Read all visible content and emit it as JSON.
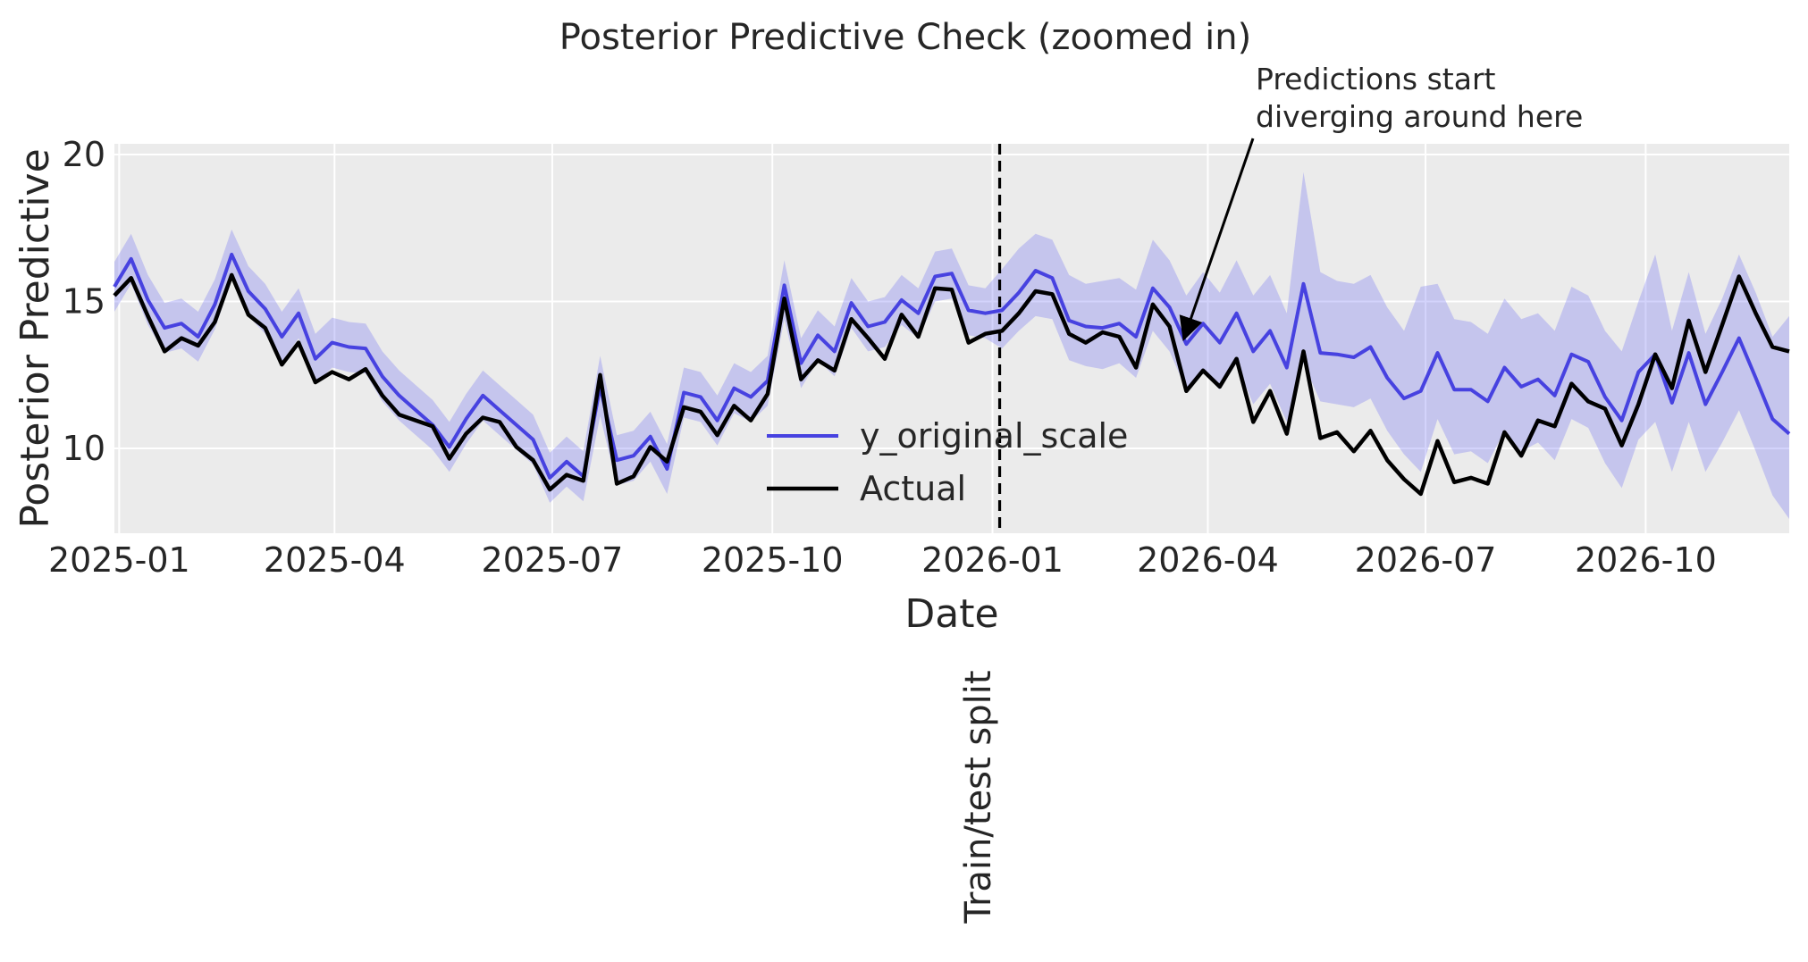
{
  "title": "Posterior Predictive Check (zoomed in)",
  "chart_data": {
    "type": "line",
    "title": "Posterior Predictive Check (zoomed in)",
    "xlabel": "Date",
    "ylabel": "Posterior Predictive",
    "background": "#ebebeb",
    "grid": "on",
    "grid_color": "#ffffff",
    "ylim": [
      7.2,
      20.4
    ],
    "xlim": [
      "2024-12-30",
      "2026-12-01"
    ],
    "y_ticks": [
      20,
      15,
      10
    ],
    "x_ticks": [
      {
        "date": "2025-01-01",
        "label": "2025-01"
      },
      {
        "date": "2025-04-01",
        "label": "2025-04"
      },
      {
        "date": "2025-07-01",
        "label": "2025-07"
      },
      {
        "date": "2025-10-01",
        "label": "2025-10"
      },
      {
        "date": "2026-01-01",
        "label": "2026-01"
      },
      {
        "date": "2026-04-01",
        "label": "2026-04"
      },
      {
        "date": "2026-07-01",
        "label": "2026-07"
      },
      {
        "date": "2026-10-01",
        "label": "2026-10"
      }
    ],
    "x_start": "2024-12-30",
    "x_step_days": 7,
    "split": {
      "date": "2026-01-04",
      "label": "Train/test split",
      "line_style": "dashed",
      "color": "#000000"
    },
    "legend": [
      {
        "label": "y_original_scale",
        "color": "#4742e0"
      },
      {
        "label": "Actual",
        "color": "#000000"
      }
    ],
    "band": {
      "color": "#6c6ef2",
      "opacity": 0.3,
      "high": [
        16.35,
        17.3,
        15.9,
        14.95,
        15.1,
        14.65,
        15.75,
        17.45,
        16.2,
        15.6,
        14.65,
        15.45,
        13.9,
        14.45,
        14.3,
        14.25,
        13.3,
        12.65,
        12.15,
        11.65,
        10.9,
        11.85,
        12.65,
        12.15,
        11.65,
        11.15,
        9.85,
        10.4,
        9.9,
        13.15,
        10.45,
        10.6,
        11.25,
        10.15,
        12.75,
        12.6,
        11.8,
        12.9,
        12.6,
        13.15,
        16.4,
        13.75,
        14.7,
        14.15,
        15.8,
        15.0,
        15.15,
        15.9,
        15.45,
        16.7,
        16.8,
        15.55,
        15.45,
        16.1,
        16.8,
        17.3,
        17.1,
        15.9,
        15.6,
        15.7,
        15.8,
        15.4,
        17.1,
        16.4,
        15.2,
        16.0,
        15.3,
        16.4,
        15.2,
        15.9,
        14.6,
        19.4,
        16.0,
        15.7,
        15.6,
        15.9,
        14.8,
        14.0,
        15.5,
        15.6,
        14.4,
        14.3,
        13.9,
        15.1,
        14.4,
        14.6,
        14.0,
        15.5,
        15.2,
        14.0,
        13.3,
        15.0,
        16.6,
        14.0,
        16.0,
        13.9,
        15.1,
        16.6,
        15.3,
        13.8,
        14.5
      ],
      "low": [
        14.65,
        15.6,
        14.2,
        13.25,
        13.4,
        12.95,
        14.05,
        15.75,
        14.5,
        13.9,
        12.95,
        13.75,
        12.2,
        12.75,
        12.6,
        12.55,
        11.6,
        10.95,
        10.45,
        9.95,
        9.2,
        10.15,
        10.95,
        10.45,
        9.95,
        9.45,
        8.15,
        8.7,
        8.2,
        11.1,
        8.75,
        8.9,
        9.55,
        8.45,
        11.05,
        10.9,
        10.1,
        11.2,
        10.9,
        11.45,
        14.4,
        12.05,
        13.0,
        12.45,
        14.1,
        13.3,
        13.45,
        14.2,
        13.75,
        15.0,
        15.1,
        13.85,
        13.75,
        13.4,
        14.0,
        14.5,
        14.4,
        13.0,
        12.8,
        12.7,
        12.9,
        12.4,
        14.0,
        13.3,
        12.0,
        12.6,
        12.0,
        12.9,
        11.5,
        12.2,
        10.9,
        12.9,
        11.6,
        11.5,
        11.4,
        11.7,
        10.6,
        9.8,
        9.2,
        11.0,
        9.8,
        9.9,
        9.5,
        10.6,
        9.9,
        10.2,
        9.6,
        11.0,
        10.7,
        9.5,
        8.65,
        10.3,
        10.9,
        9.2,
        10.9,
        9.2,
        10.2,
        11.3,
        9.9,
        8.4,
        7.6
      ]
    },
    "series": [
      {
        "name": "y_original_scale",
        "color": "#4742e0",
        "width": 4,
        "values": [
          15.5,
          16.45,
          15.05,
          14.1,
          14.25,
          13.8,
          14.9,
          16.6,
          15.35,
          14.75,
          13.8,
          14.6,
          13.05,
          13.6,
          13.45,
          13.4,
          12.45,
          11.8,
          11.3,
          10.8,
          10.05,
          11.0,
          11.8,
          11.3,
          10.8,
          10.3,
          9.0,
          9.55,
          9.05,
          12.1,
          9.6,
          9.75,
          10.4,
          9.3,
          11.9,
          11.75,
          10.95,
          12.05,
          11.75,
          12.3,
          15.55,
          12.9,
          13.85,
          13.3,
          14.95,
          14.15,
          14.3,
          15.05,
          14.6,
          15.85,
          15.95,
          14.7,
          14.6,
          14.7,
          15.3,
          16.05,
          15.8,
          14.35,
          14.15,
          14.1,
          14.25,
          13.8,
          15.45,
          14.8,
          13.55,
          14.25,
          13.6,
          14.6,
          13.3,
          14.0,
          12.75,
          15.6,
          13.25,
          13.2,
          13.1,
          13.45,
          12.4,
          11.7,
          11.95,
          13.25,
          12.0,
          12.0,
          11.6,
          12.75,
          12.1,
          12.35,
          11.8,
          13.2,
          12.95,
          11.75,
          10.95,
          12.6,
          13.2,
          11.55,
          13.25,
          11.5,
          12.6,
          13.75,
          12.4,
          11.0,
          10.5
        ]
      },
      {
        "name": "Actual",
        "color": "#000000",
        "width": 4.5,
        "values": [
          15.2,
          15.8,
          14.5,
          13.3,
          13.75,
          13.5,
          14.3,
          15.9,
          14.55,
          14.1,
          12.85,
          13.6,
          12.25,
          12.6,
          12.35,
          12.7,
          11.8,
          11.15,
          10.95,
          10.75,
          9.65,
          10.5,
          11.05,
          10.9,
          10.05,
          9.6,
          8.6,
          9.1,
          8.9,
          12.5,
          8.8,
          9.05,
          10.05,
          9.55,
          11.4,
          11.25,
          10.45,
          11.45,
          10.95,
          11.85,
          15.1,
          12.35,
          13.0,
          12.65,
          14.4,
          13.75,
          13.05,
          14.55,
          13.8,
          15.45,
          15.4,
          13.6,
          13.9,
          14.0,
          14.6,
          15.35,
          15.25,
          13.9,
          13.6,
          13.95,
          13.8,
          12.75,
          14.9,
          14.15,
          11.95,
          12.65,
          12.1,
          13.05,
          10.9,
          11.95,
          10.5,
          13.3,
          10.35,
          10.55,
          9.9,
          10.6,
          9.6,
          8.95,
          8.45,
          10.25,
          8.85,
          9.0,
          8.8,
          10.55,
          9.75,
          10.95,
          10.75,
          12.2,
          11.6,
          11.35,
          10.1,
          11.5,
          13.2,
          12.05,
          14.35,
          12.6,
          14.2,
          15.85,
          14.6,
          13.45,
          13.3
        ]
      }
    ],
    "annotation": {
      "lines": [
        "Predictions start",
        "diverging around here"
      ],
      "arrow_target": {
        "date": "2026-03-22",
        "value": 13.55
      }
    }
  }
}
